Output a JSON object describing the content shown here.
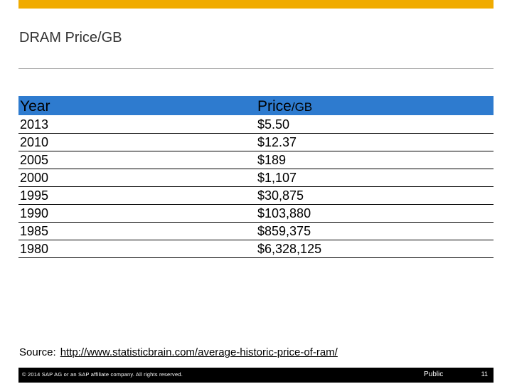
{
  "slide": {
    "title": "DRAM Price/GB"
  },
  "table": {
    "headers": {
      "year": "Year",
      "price_main": "Price",
      "price_suffix": "/GB"
    },
    "rows": [
      {
        "year": "2013",
        "price": "$5.50"
      },
      {
        "year": "2010",
        "price": "$12.37"
      },
      {
        "year": "2005",
        "price": "$189"
      },
      {
        "year": "2000",
        "price": "$1,107"
      },
      {
        "year": "1995",
        "price": "$30,875"
      },
      {
        "year": "1990",
        "price": "$103,880"
      },
      {
        "year": "1985",
        "price": "$859,375"
      },
      {
        "year": "1980",
        "price": "$6,328,125"
      }
    ]
  },
  "source": {
    "label": "Source:",
    "link": "http://www.statisticbrain.com/average-historic-price-of-ram/"
  },
  "footer": {
    "copyright": "© 2014 SAP AG or an SAP affiliate company. All rights reserved.",
    "classification": "Public",
    "page_number": "11"
  },
  "colors": {
    "accent_bar": "#f0ab00",
    "header_fill": "#2e7bcf",
    "footer_bg": "#000000"
  }
}
